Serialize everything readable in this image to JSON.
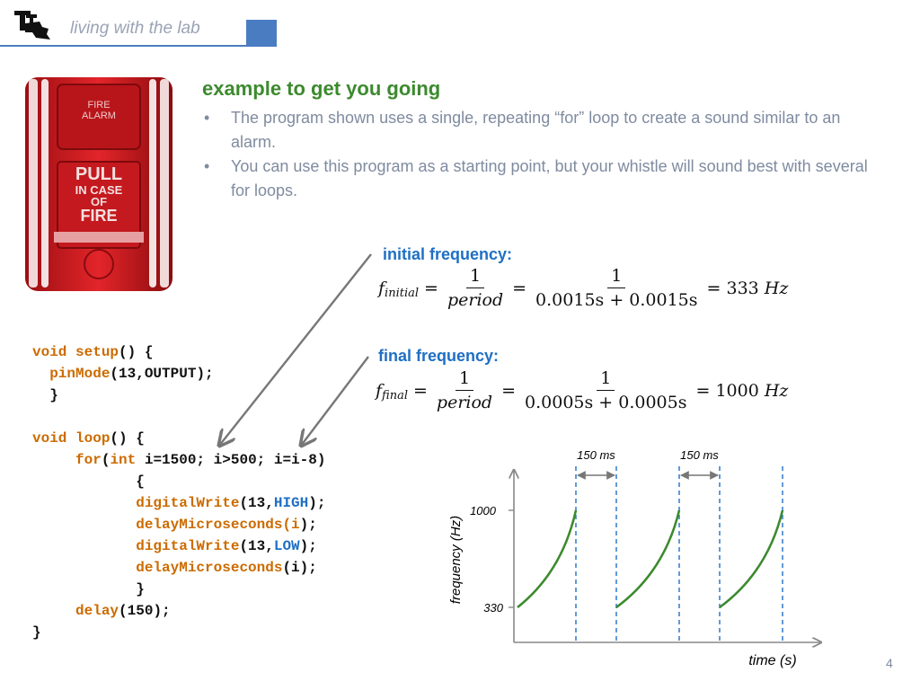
{
  "header": {
    "title": "living with the lab"
  },
  "alarm_image": {
    "line1": "FIRE",
    "line2": "ALARM",
    "pull": "PULL",
    "in_case": "IN CASE",
    "of": "OF",
    "fire": "FIRE"
  },
  "slide": {
    "title": "example to get you going",
    "bullets": [
      "The program shown uses a single, repeating “for” loop to create a sound similar to an alarm.",
      "You can use this program as a starting point, but your whistle will sound best with several for loops."
    ],
    "bullet_marker": "•",
    "page_number": "4"
  },
  "code": {
    "lines": [
      [
        [
          "kw",
          "void "
        ],
        [
          "kw",
          "setup"
        ],
        [
          "",
          "() {"
        ]
      ],
      [
        [
          "",
          "  "
        ],
        [
          "kw",
          "pinMode"
        ],
        [
          "",
          "(13,OUTPUT);"
        ]
      ],
      [
        [
          "",
          "  }"
        ]
      ],
      [
        [
          "",
          ""
        ]
      ],
      [
        [
          "kw",
          "void "
        ],
        [
          "kw",
          "loop"
        ],
        [
          "",
          "() {"
        ]
      ],
      [
        [
          "",
          "     "
        ],
        [
          "kw",
          "for"
        ],
        [
          "",
          "("
        ],
        [
          "kw",
          "int"
        ],
        [
          "",
          " i=1500; i>500; i=i-8)"
        ]
      ],
      [
        [
          "",
          "            {"
        ]
      ],
      [
        [
          "",
          "            "
        ],
        [
          "kw",
          "digitalWrite"
        ],
        [
          "",
          "(13,"
        ],
        [
          "blue",
          "HIGH"
        ],
        [
          "",
          ");"
        ]
      ],
      [
        [
          "",
          "            "
        ],
        [
          "kw",
          "delayMicroseconds(i"
        ],
        [
          "",
          ");"
        ]
      ],
      [
        [
          "",
          "            "
        ],
        [
          "kw",
          "digitalWrite"
        ],
        [
          "",
          "(13,"
        ],
        [
          "blue",
          "LOW"
        ],
        [
          "",
          ");"
        ]
      ],
      [
        [
          "",
          "            "
        ],
        [
          "kw",
          "delayMicroseconds"
        ],
        [
          "",
          "(i);"
        ]
      ],
      [
        [
          "",
          "            }"
        ]
      ],
      [
        [
          "",
          "     "
        ],
        [
          "kw",
          "delay"
        ],
        [
          "",
          "(150);"
        ]
      ],
      [
        [
          "",
          "}"
        ]
      ]
    ]
  },
  "equations": {
    "initial": {
      "label": "initial frequency:",
      "f": "f",
      "sub": "initial",
      "num1": "1",
      "den1": "period",
      "num2": "1",
      "den2": "0.0015s + 0.0015s",
      "result": "= 333 ",
      "unit": "Hz"
    },
    "final": {
      "label": "final frequency:",
      "f": "f",
      "sub": "final",
      "num1": "1",
      "den1": "period",
      "num2": "1",
      "den2": "0.0005s + 0.0005s",
      "result": "= 1000 ",
      "unit": "Hz"
    }
  },
  "chart_data": {
    "type": "line",
    "xlabel": "time (s)",
    "ylabel": "frequency (Hz)",
    "ytick_labels": [
      "1000",
      "330"
    ],
    "annotations": [
      "150 ms",
      "150 ms"
    ],
    "colors": {
      "curve": "#3c8a2e",
      "dashed": "#1f6fc4",
      "axis": "#888888",
      "arrow": "#777777"
    }
  }
}
